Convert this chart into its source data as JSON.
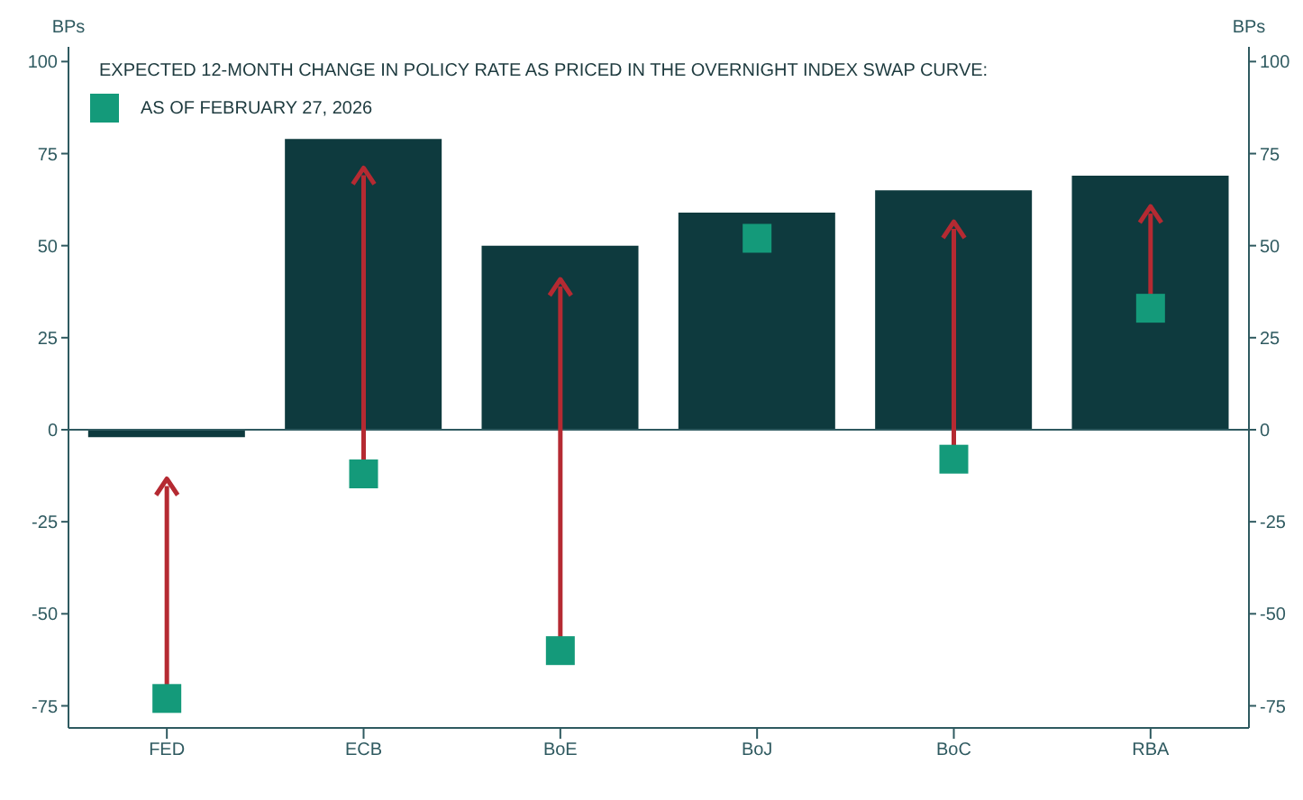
{
  "chart_data": {
    "type": "bar",
    "title": "EXPECTED 12-MONTH CHANGE IN POLICY RATE AS PRICED IN THE OVERNIGHT INDEX SWAP CURVE:",
    "ylabel": "BPs",
    "y2label": "BPs",
    "categories": [
      "FED",
      "ECB",
      "BoE",
      "BoJ",
      "BoC",
      "RBA"
    ],
    "series": [
      {
        "type": "bar",
        "color": "#0e3a3e",
        "values": [
          -2,
          79,
          50,
          59,
          65,
          69
        ]
      },
      {
        "type": "scatter",
        "name": "AS OF FEBRUARY 27, 2026",
        "color": "#149a7a",
        "marker": "square",
        "values": [
          -73,
          -12,
          -60,
          52,
          -8,
          33
        ]
      }
    ],
    "ylim": [
      -81,
      104
    ],
    "yticks": [
      -75,
      -50,
      -25,
      0,
      25,
      50,
      75,
      100
    ],
    "y2lim": [
      -81,
      104
    ],
    "y2ticks": [
      -75,
      -50,
      -25,
      0,
      25,
      50,
      75,
      100
    ],
    "legend": "top left"
  }
}
